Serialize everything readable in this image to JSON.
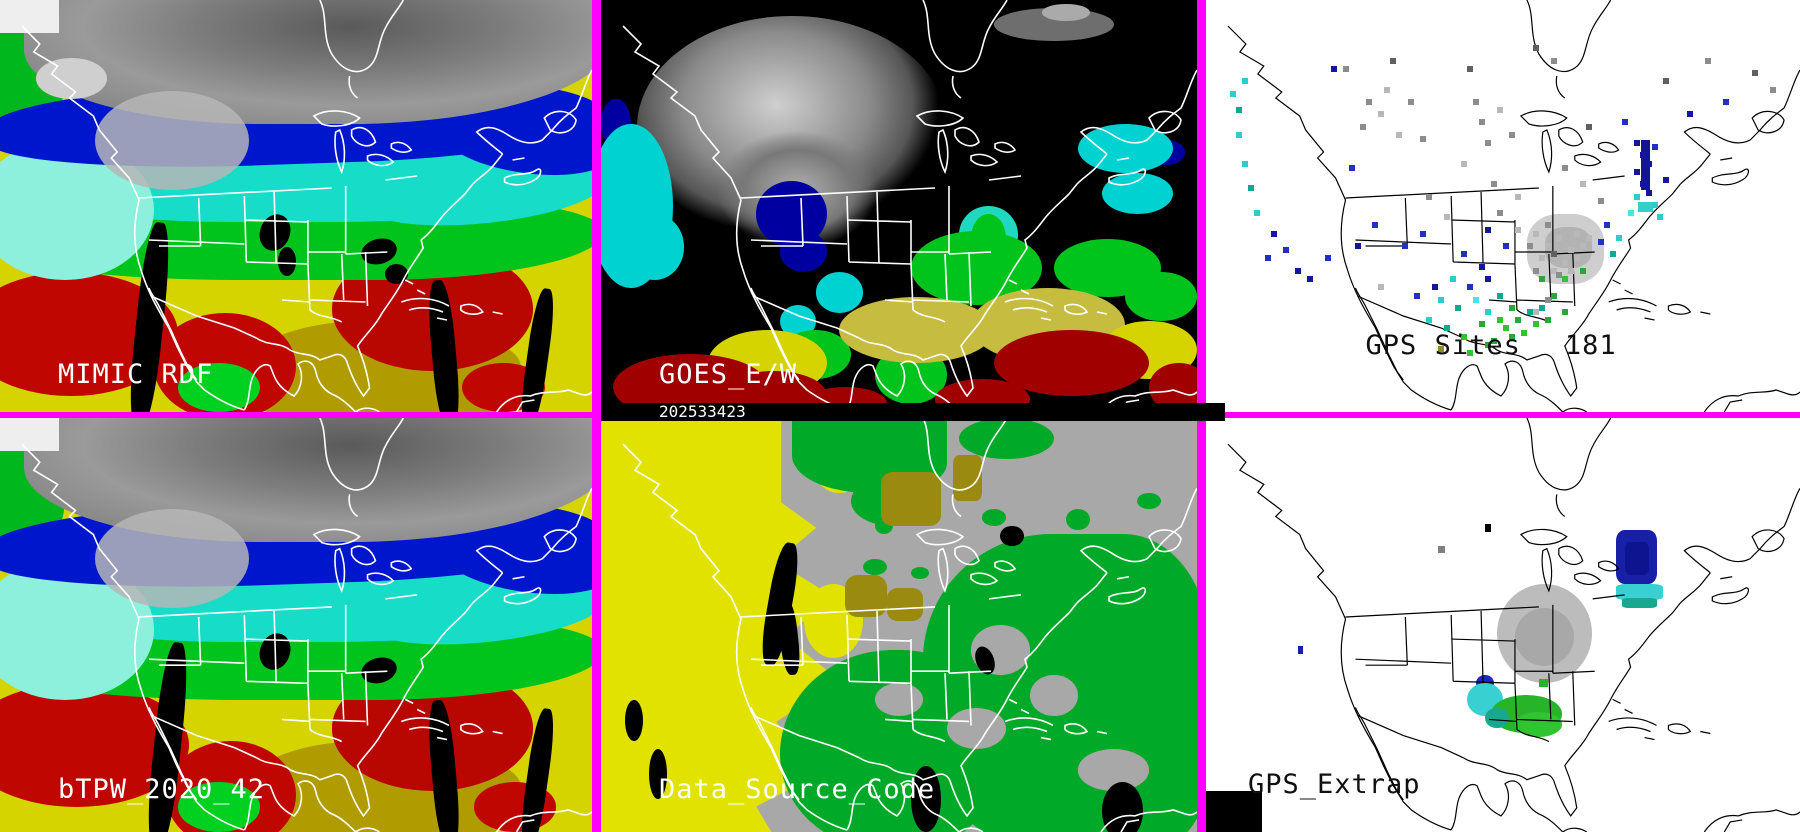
{
  "panels": {
    "mimic": {
      "label": "MIMIC RDF"
    },
    "goes": {
      "label": "GOES_E/W"
    },
    "gps_sites": {
      "label": "GPS Sites",
      "count": "181"
    },
    "btpw": {
      "label": "bTPW_2020_42"
    },
    "data_source": {
      "label": "Data_Source_Code"
    },
    "gps_extrap": {
      "label": "GPS_Extrap"
    }
  },
  "timestamp": "202533423",
  "colors": {
    "magenta": "#ff00ff",
    "tpw-gray": "#8c8c8c",
    "tpw-blue": "#0016cc",
    "tpw-cyan": "#16dcc8",
    "tpw-green": "#00c41c",
    "tpw-yellow": "#d6d400",
    "tpw-red": "#c00600",
    "goes-bg": "#000000",
    "dsc-bg": "#a8a8a8",
    "dsc-yellow": "#e2e200",
    "dsc-green": "#00aa28",
    "dsc-olive": "#9a8a10",
    "map-outline-white": "#ffffff",
    "map-outline-black": "#000000"
  },
  "dot_palette": {
    "g": "#8c8c8c",
    "l": "#b8b8b8",
    "d": "#606060",
    "n": "#16169c",
    "b": "#2430c0",
    "c": "#2ecccc",
    "C": "#46e4e4",
    "G": "#28a838",
    "E": "#30c430",
    "t": "#10a890",
    "o": "#909020"
  },
  "gps_dots": [
    [
      23,
      16,
      "g"
    ],
    [
      27,
      24,
      "g"
    ],
    [
      30,
      21,
      "l"
    ],
    [
      34,
      24,
      "g"
    ],
    [
      26,
      30,
      "g"
    ],
    [
      32,
      32,
      "l"
    ],
    [
      44,
      16,
      "d"
    ],
    [
      45,
      24,
      "g"
    ],
    [
      46,
      29,
      "g"
    ],
    [
      47,
      34,
      "g"
    ],
    [
      49,
      26,
      "l"
    ],
    [
      51,
      32,
      "g"
    ],
    [
      43,
      39,
      "l"
    ],
    [
      48,
      44,
      "g"
    ],
    [
      52,
      47,
      "l"
    ],
    [
      31,
      14,
      "d"
    ],
    [
      55,
      11,
      "d"
    ],
    [
      58,
      14,
      "g"
    ],
    [
      36,
      33,
      "g"
    ],
    [
      29,
      27,
      "l"
    ],
    [
      6,
      19,
      "c"
    ],
    [
      5,
      26,
      "t"
    ],
    [
      5,
      32,
      "c"
    ],
    [
      6,
      39,
      "c"
    ],
    [
      7,
      45,
      "t"
    ],
    [
      8,
      51,
      "c"
    ],
    [
      4,
      22,
      "c"
    ],
    [
      11,
      56,
      "n"
    ],
    [
      13,
      60,
      "b"
    ],
    [
      15,
      65,
      "n"
    ],
    [
      17,
      67,
      "n"
    ],
    [
      10,
      62,
      "b"
    ],
    [
      20,
      62,
      "b"
    ],
    [
      25,
      59,
      "n"
    ],
    [
      29,
      69,
      "l"
    ],
    [
      33,
      59,
      "b"
    ],
    [
      36,
      56,
      "b"
    ],
    [
      28,
      54,
      "b"
    ],
    [
      21,
      16,
      "n"
    ],
    [
      24,
      40,
      "b"
    ],
    [
      40,
      52,
      "l"
    ],
    [
      37,
      47,
      "g"
    ],
    [
      43,
      61,
      "b"
    ],
    [
      46,
      64,
      "n"
    ],
    [
      41,
      67,
      "c"
    ],
    [
      44,
      69,
      "b"
    ],
    [
      47,
      67,
      "n"
    ],
    [
      39,
      72,
      "c"
    ],
    [
      42,
      74,
      "t"
    ],
    [
      45,
      72,
      "C"
    ],
    [
      47,
      75,
      "c"
    ],
    [
      49,
      71,
      "t"
    ],
    [
      37,
      77,
      "c"
    ],
    [
      40,
      79,
      "t"
    ],
    [
      43,
      81,
      "E"
    ],
    [
      46,
      78,
      "G"
    ],
    [
      49,
      77,
      "E"
    ],
    [
      51,
      74,
      "G"
    ],
    [
      35,
      71,
      "b"
    ],
    [
      38,
      69,
      "n"
    ],
    [
      39,
      84,
      "o"
    ],
    [
      44,
      85,
      "E"
    ],
    [
      47,
      83,
      "G"
    ],
    [
      50,
      79,
      "E"
    ],
    [
      52,
      77,
      "G"
    ],
    [
      53,
      80,
      "E"
    ],
    [
      54,
      75,
      "t"
    ],
    [
      51,
      81,
      "G"
    ],
    [
      55,
      78,
      "E"
    ],
    [
      48,
      82,
      "G"
    ],
    [
      56,
      74,
      "t"
    ],
    [
      57,
      77,
      "G"
    ],
    [
      56,
      67,
      "G"
    ],
    [
      58,
      71,
      "G"
    ],
    [
      60,
      67,
      "E"
    ],
    [
      63,
      65,
      "G"
    ],
    [
      60,
      75,
      "G"
    ],
    [
      47,
      55,
      "n"
    ],
    [
      50,
      59,
      "b"
    ],
    [
      52,
      55,
      "l"
    ],
    [
      49,
      51,
      "g"
    ],
    [
      55,
      56,
      "l"
    ],
    [
      57,
      59,
      "l"
    ],
    [
      59,
      57,
      "l"
    ],
    [
      61,
      60,
      "l"
    ],
    [
      56,
      62,
      "l"
    ],
    [
      58,
      65,
      "l"
    ],
    [
      60,
      63,
      "l"
    ],
    [
      62,
      56,
      "l"
    ],
    [
      54,
      59,
      "g"
    ],
    [
      57,
      54,
      "g"
    ],
    [
      59,
      66,
      "g"
    ],
    [
      61,
      65,
      "l"
    ],
    [
      63,
      59,
      "l"
    ],
    [
      55,
      65,
      "g"
    ],
    [
      58,
      61,
      "d"
    ],
    [
      62,
      62,
      "l"
    ],
    [
      64,
      57,
      "l"
    ],
    [
      57,
      72,
      "g"
    ],
    [
      55,
      75,
      "l"
    ],
    [
      72,
      34,
      "n"
    ],
    [
      73,
      37,
      "n"
    ],
    [
      72,
      41,
      "n"
    ],
    [
      73,
      44,
      "n"
    ],
    [
      74,
      39,
      "n"
    ],
    [
      74,
      46,
      "n"
    ],
    [
      72,
      47,
      "c"
    ],
    [
      75,
      49,
      "c"
    ],
    [
      76,
      52,
      "c"
    ],
    [
      71,
      51,
      "C"
    ],
    [
      75,
      35,
      "b"
    ],
    [
      70,
      29,
      "b"
    ],
    [
      67,
      54,
      "b"
    ],
    [
      69,
      57,
      "c"
    ],
    [
      68,
      61,
      "t"
    ],
    [
      66,
      58,
      "b"
    ],
    [
      77,
      43,
      "n"
    ],
    [
      81,
      27,
      "n"
    ],
    [
      87,
      24,
      "b"
    ],
    [
      95,
      21,
      "g"
    ],
    [
      92,
      17,
      "d"
    ],
    [
      77,
      19,
      "d"
    ],
    [
      84,
      14,
      "g"
    ],
    [
      60,
      40,
      "g"
    ],
    [
      63,
      44,
      "l"
    ],
    [
      66,
      48,
      "g"
    ],
    [
      64,
      30,
      "d"
    ]
  ],
  "extrap_blobs": [
    {
      "l": 49,
      "t": 40,
      "w": 16,
      "h": 24,
      "c": "#bcbcbc"
    },
    {
      "l": 52,
      "t": 46,
      "w": 10,
      "h": 14,
      "c": "#a8a8a8"
    },
    {
      "l": 69,
      "t": 27,
      "w": 7,
      "h": 13,
      "c": "#1820a8",
      "r": 20
    },
    {
      "l": 70.5,
      "t": 30,
      "w": 4,
      "h": 8,
      "c": "#0c1490",
      "r": 20
    },
    {
      "l": 69,
      "t": 40,
      "w": 8,
      "h": 4,
      "c": "#38d0d0",
      "r": 20
    },
    {
      "l": 70,
      "t": 43.5,
      "w": 6,
      "h": 2.5,
      "c": "#18a890",
      "r": 20
    },
    {
      "l": 45.5,
      "t": 62,
      "w": 3,
      "h": 4,
      "c": "#2028c0"
    },
    {
      "l": 44,
      "t": 64,
      "w": 6,
      "h": 8,
      "c": "#38d0d0"
    },
    {
      "l": 48,
      "t": 67,
      "w": 12,
      "h": 9,
      "c": "#28b428"
    },
    {
      "l": 52,
      "t": 71,
      "w": 8,
      "h": 6,
      "c": "#30c430"
    },
    {
      "l": 47,
      "t": 70,
      "w": 4,
      "h": 5,
      "c": "#18a890"
    },
    {
      "l": 15.5,
      "t": 55,
      "w": 0.8,
      "h": 2,
      "c": "#1820a8",
      "r": 0
    },
    {
      "l": 39,
      "t": 31,
      "w": 1.2,
      "h": 1.5,
      "c": "#808080",
      "r": 0
    },
    {
      "l": 47,
      "t": 25.5,
      "w": 1,
      "h": 2,
      "c": "#000000",
      "r": 0
    },
    {
      "l": 56,
      "t": 63,
      "w": 1.5,
      "h": 2,
      "c": "#28b428",
      "r": 0
    }
  ]
}
